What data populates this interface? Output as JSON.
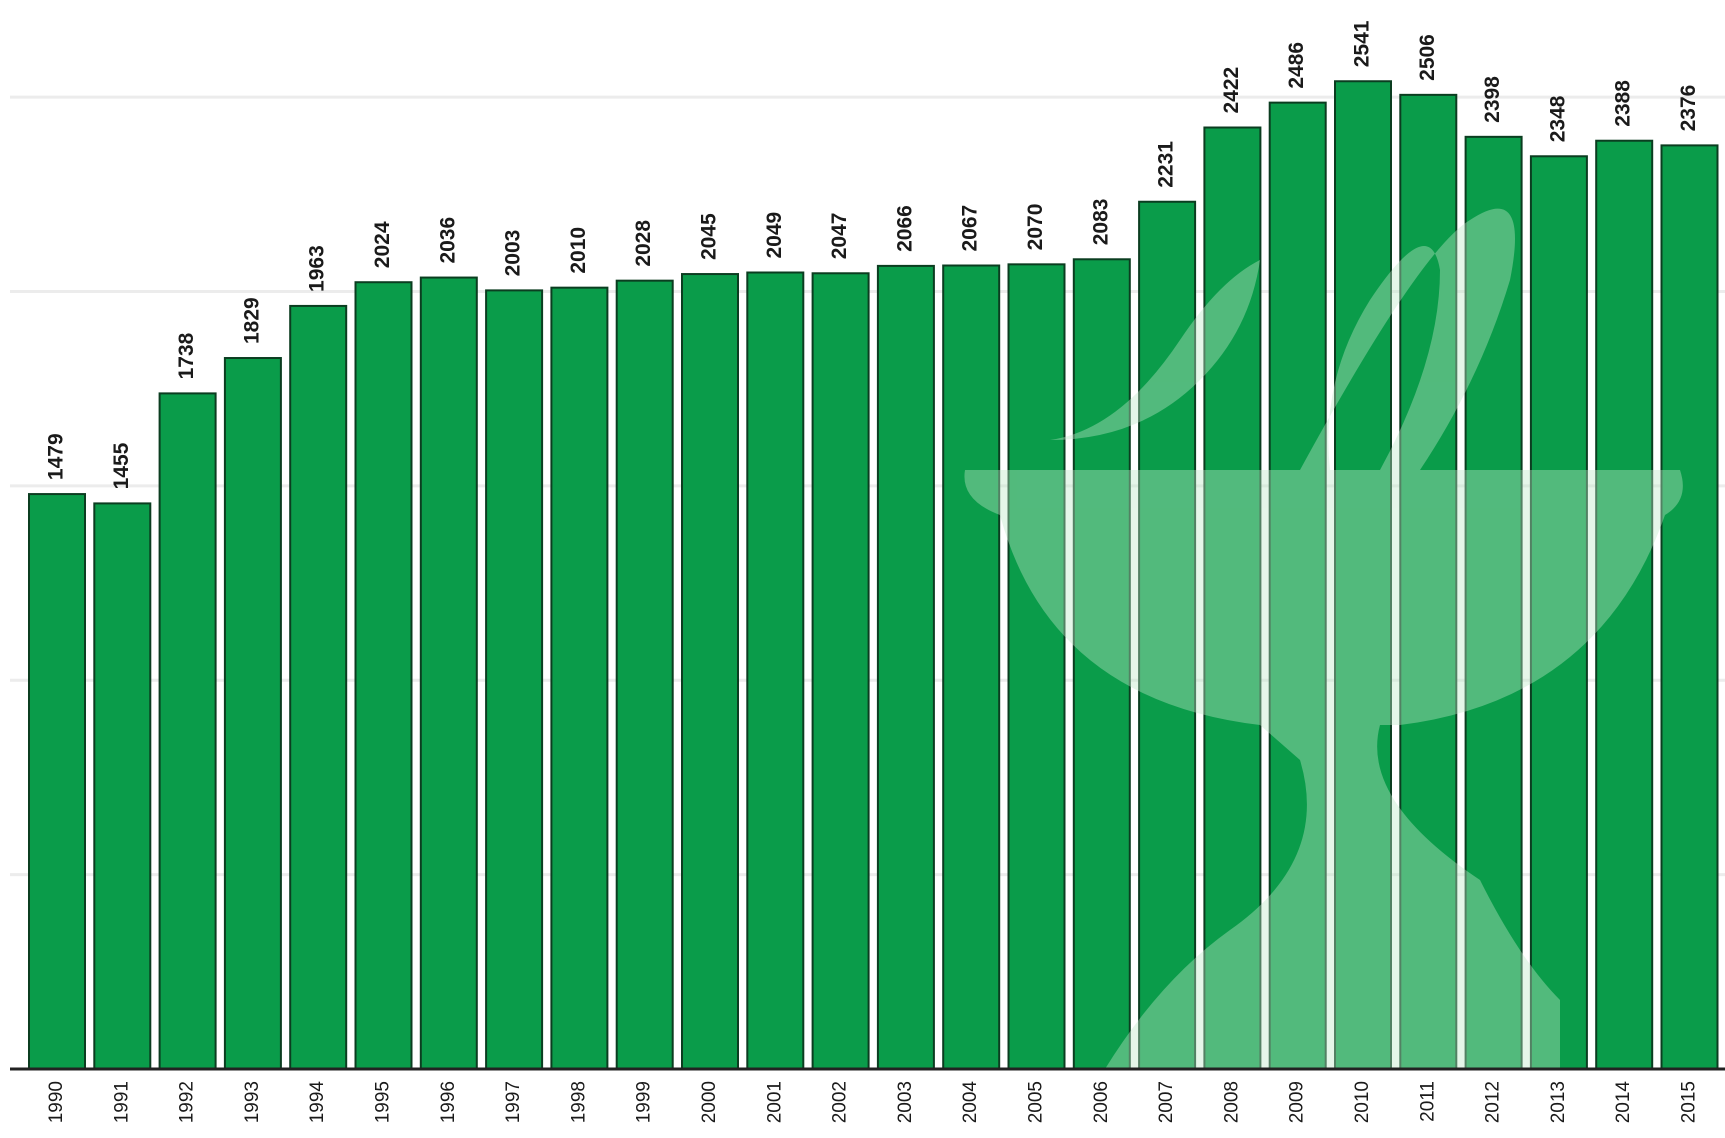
{
  "chart_data": {
    "type": "bar",
    "categories": [
      "1990",
      "1991",
      "1992",
      "1993",
      "1994",
      "1995",
      "1996",
      "1997",
      "1998",
      "1999",
      "2000",
      "2001",
      "2002",
      "2003",
      "2004",
      "2005",
      "2006",
      "2007",
      "2008",
      "2009",
      "2010",
      "2011",
      "2012",
      "2013",
      "2014",
      "2015"
    ],
    "values": [
      1479,
      1455,
      1738,
      1829,
      1963,
      2024,
      2036,
      2003,
      2010,
      2028,
      2045,
      2049,
      2047,
      2066,
      2067,
      2070,
      2083,
      2231,
      2422,
      2486,
      2541,
      2506,
      2398,
      2348,
      2388,
      2376
    ],
    "color": "#0a9c4a",
    "ylim": [
      0,
      2750
    ],
    "yticks": [
      0,
      500,
      1000,
      1500,
      2000,
      2500
    ],
    "grid": true
  }
}
